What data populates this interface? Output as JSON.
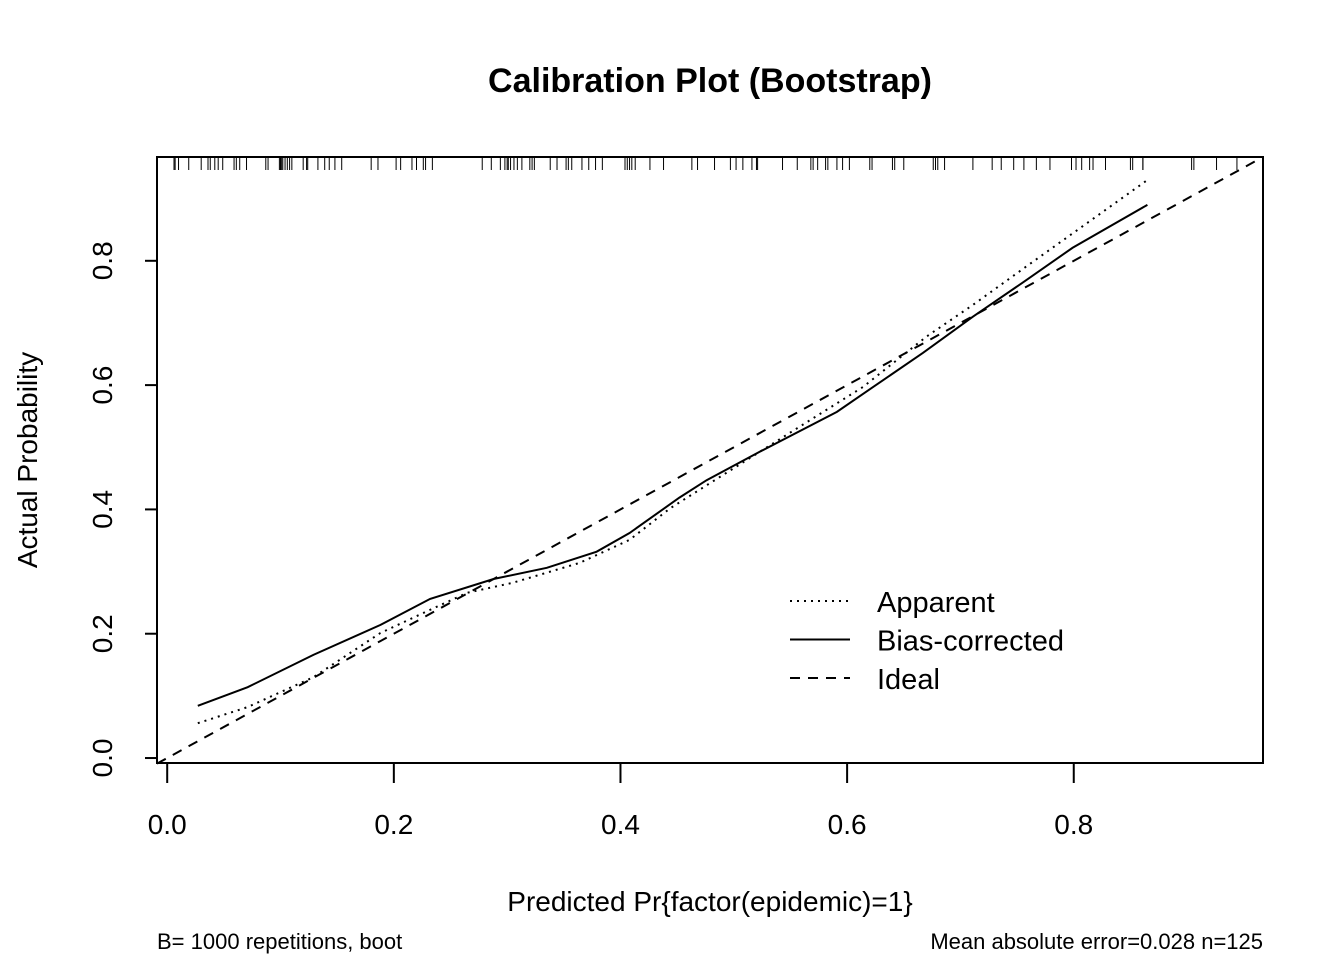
{
  "chart_data": {
    "type": "line",
    "title": "Calibration Plot (Bootstrap)",
    "xlabel": "Predicted Pr{factor(epidemic)=1}",
    "ylabel": "Actual Probability",
    "xlim": [
      -0.009,
      0.967
    ],
    "ylim": [
      -0.008,
      0.967
    ],
    "xticks": [
      0.0,
      0.2,
      0.4,
      0.6,
      0.8
    ],
    "xtick_labels": [
      "0.0",
      "0.2",
      "0.4",
      "0.6",
      "0.8"
    ],
    "yticks": [
      0.0,
      0.2,
      0.4,
      0.6,
      0.8
    ],
    "ytick_labels": [
      "0.0",
      "0.2",
      "0.4",
      "0.6",
      "0.8"
    ],
    "grid": false,
    "legend_position": "bottom-right",
    "footnote_left": "B= 1000 repetitions, boot",
    "footnote_right": "Mean absolute error=0.028 n=125",
    "series": [
      {
        "name": "Apparent",
        "style": "dotted",
        "x": [
          0.027,
          0.071,
          0.129,
          0.188,
          0.235,
          0.265,
          0.305,
          0.364,
          0.408,
          0.444,
          0.558,
          0.614,
          0.67,
          0.711,
          0.759,
          0.812,
          0.865
        ],
        "y": [
          0.056,
          0.082,
          0.13,
          0.201,
          0.241,
          0.266,
          0.282,
          0.314,
          0.351,
          0.402,
          0.533,
          0.597,
          0.678,
          0.729,
          0.792,
          0.861,
          0.93
        ]
      },
      {
        "name": "Bias-corrected",
        "style": "solid",
        "x": [
          0.027,
          0.071,
          0.129,
          0.188,
          0.232,
          0.288,
          0.335,
          0.379,
          0.408,
          0.452,
          0.476,
          0.521,
          0.591,
          0.623,
          0.667,
          0.711,
          0.755,
          0.799,
          0.865
        ],
        "y": [
          0.084,
          0.114,
          0.166,
          0.214,
          0.256,
          0.288,
          0.306,
          0.332,
          0.362,
          0.419,
          0.447,
          0.491,
          0.557,
          0.597,
          0.652,
          0.71,
          0.765,
          0.821,
          0.89
        ]
      },
      {
        "name": "Ideal",
        "style": "dashed",
        "x": [
          -0.009,
          0.967
        ],
        "y": [
          -0.009,
          0.967
        ]
      }
    ],
    "rug": [
      0.006,
      0.007,
      0.01,
      0.019,
      0.03,
      0.036,
      0.038,
      0.042,
      0.045,
      0.049,
      0.059,
      0.061,
      0.064,
      0.07,
      0.087,
      0.089,
      0.099,
      0.1,
      0.101,
      0.102,
      0.104,
      0.106,
      0.108,
      0.11,
      0.12,
      0.123,
      0.124,
      0.133,
      0.139,
      0.143,
      0.148,
      0.154,
      0.18,
      0.186,
      0.202,
      0.206,
      0.216,
      0.22,
      0.226,
      0.228,
      0.234,
      0.278,
      0.286,
      0.294,
      0.298,
      0.3,
      0.301,
      0.303,
      0.306,
      0.309,
      0.313,
      0.32,
      0.322,
      0.324,
      0.338,
      0.344,
      0.352,
      0.354,
      0.357,
      0.366,
      0.372,
      0.378,
      0.384,
      0.404,
      0.406,
      0.408,
      0.41,
      0.413,
      0.426,
      0.438,
      0.463,
      0.468,
      0.483,
      0.497,
      0.502,
      0.508,
      0.516,
      0.52,
      0.521,
      0.543,
      0.556,
      0.568,
      0.57,
      0.574,
      0.581,
      0.583,
      0.591,
      0.596,
      0.602,
      0.62,
      0.622,
      0.64,
      0.642,
      0.65,
      0.676,
      0.678,
      0.68,
      0.686,
      0.711,
      0.728,
      0.736,
      0.747,
      0.756,
      0.767,
      0.779,
      0.798,
      0.802,
      0.807,
      0.814,
      0.817,
      0.828,
      0.85,
      0.852,
      0.861,
      0.861,
      0.904,
      0.906,
      0.926,
      0.944
    ]
  }
}
